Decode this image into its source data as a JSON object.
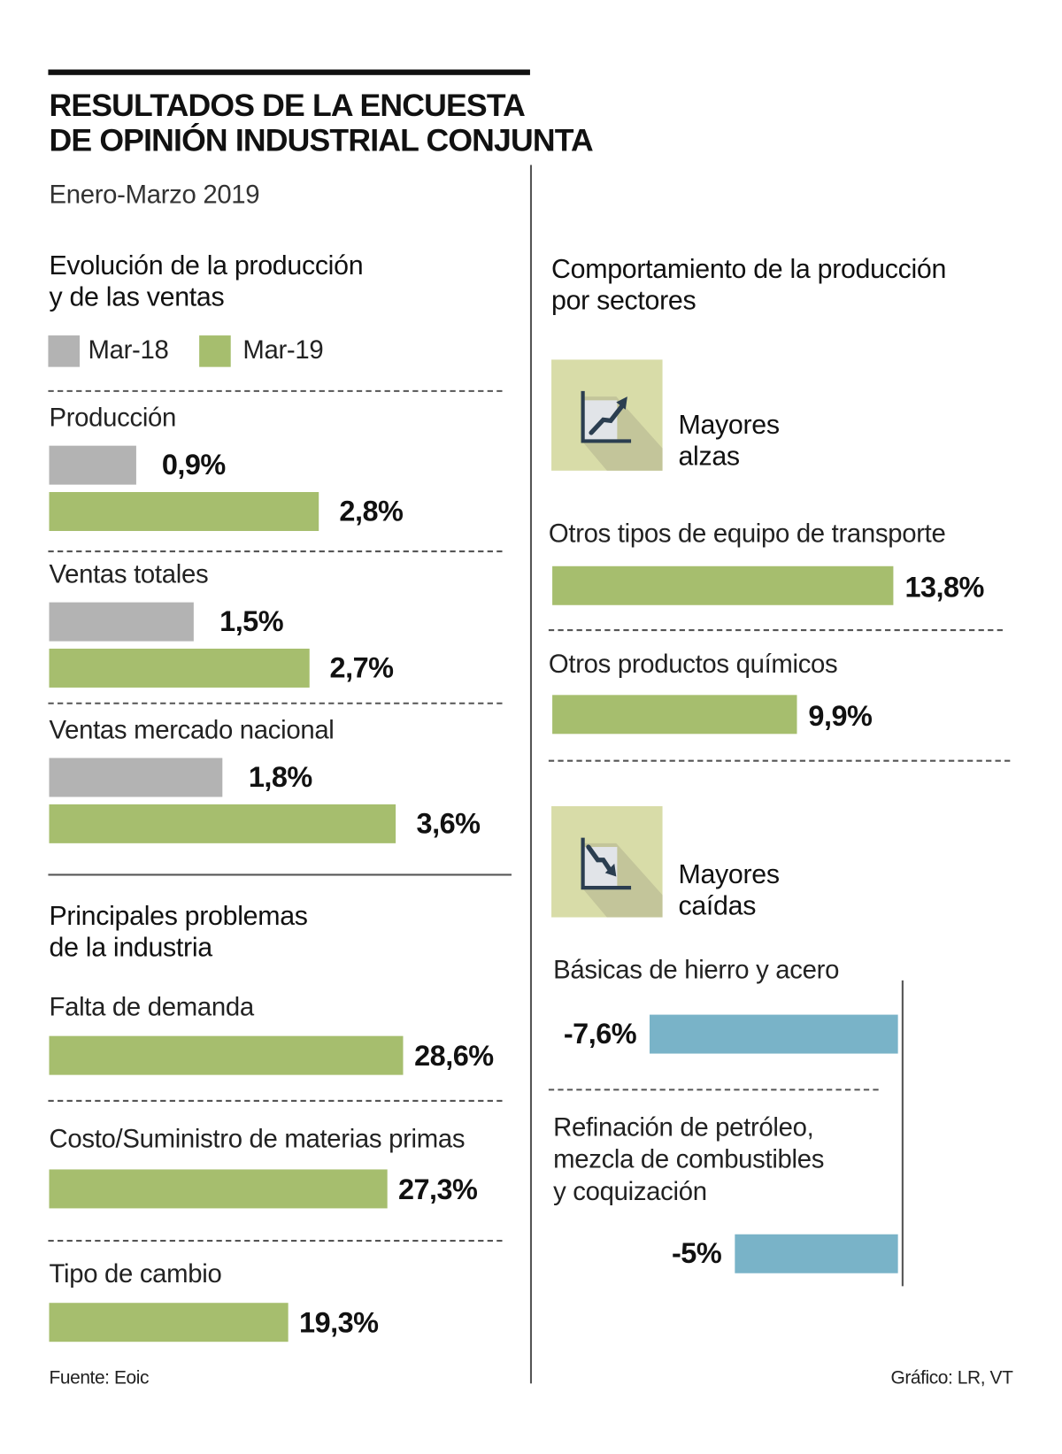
{
  "title_lines": [
    "RESULTADOS DE LA ENCUESTA",
    "DE OPINIÓN INDUSTRIAL CONJUNTA"
  ],
  "subtitle": "Enero-Marzo 2019",
  "colors": {
    "mar18": "#b3b3b3",
    "mar19": "#a6be6e",
    "falls": "#79b3c8",
    "icon_bg": "#d8dca8",
    "icon_dark": "#2b3e50"
  },
  "chart_data": [
    {
      "type": "bar",
      "title": "Evolución de la producción y de las ventas",
      "title_lines": [
        "Evolución de la producción",
        "y de las ventas"
      ],
      "legend": [
        "Mar-18",
        "Mar-19"
      ],
      "legend_placement": "top-left",
      "categories": [
        "Producción",
        "Ventas totales",
        "Ventas mercado nacional"
      ],
      "series": [
        {
          "name": "Mar-18",
          "values": [
            0.9,
            1.5,
            1.8
          ],
          "labels": [
            "0,9%",
            "1,5%",
            "1,8%"
          ]
        },
        {
          "name": "Mar-19",
          "values": [
            2.8,
            2.7,
            3.6
          ],
          "labels": [
            "2,8%",
            "2,7%",
            "3,6%"
          ]
        }
      ]
    },
    {
      "type": "bar",
      "title": "Principales problemas de la industria",
      "title_lines": [
        "Principales problemas",
        "de la industria"
      ],
      "categories": [
        "Falta de demanda",
        "Costo/Suministro de materias primas",
        "Tipo de cambio"
      ],
      "values": [
        28.6,
        27.3,
        19.3
      ],
      "labels": [
        "28,6%",
        "27,3%",
        "19,3%"
      ]
    },
    {
      "type": "bar",
      "title": "Comportamiento de la producción por sectores",
      "title_lines": [
        "Comportamiento de la producción",
        "por sectores"
      ],
      "groups": [
        {
          "name_lines": [
            "Mayores",
            "alzas"
          ],
          "icon": "chart-up-icon",
          "categories": [
            "Otros tipos de equipo de transporte",
            "Otros productos químicos"
          ],
          "values": [
            13.8,
            9.9
          ],
          "labels": [
            "13,8%",
            "9,9%"
          ]
        },
        {
          "name_lines": [
            "Mayores",
            "caídas"
          ],
          "icon": "chart-down-icon",
          "categories": [
            [
              "Básicas de hierro y acero"
            ],
            [
              "Refinación de petróleo,",
              "mezcla de combustibles",
              "y coquización"
            ]
          ],
          "values": [
            -7.6,
            -5
          ],
          "labels": [
            "-7,6%",
            "-5%"
          ]
        }
      ]
    }
  ],
  "footer": {
    "source": "Fuente: Eoic",
    "credit": "Gráfico: LR, VT"
  }
}
